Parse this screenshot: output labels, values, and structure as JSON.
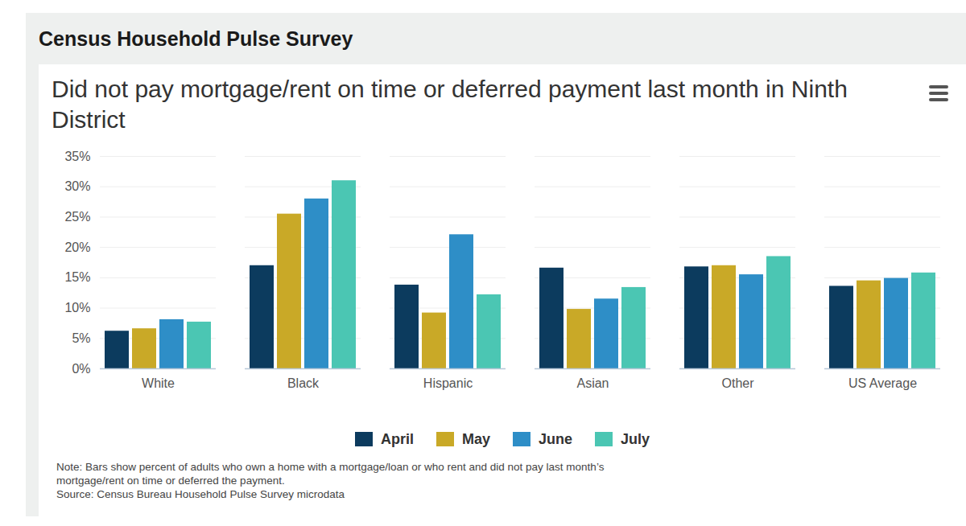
{
  "chart_data": {
    "type": "bar",
    "header": "Census Household Pulse Survey",
    "title": "Did not pay mortgage/rent on time or deferred payment last month in Ninth District",
    "annotations": [
      "Note: Bars show percent of adults who own a home with a mortgage/loan or who rent and did not pay last month’s mortgage/rent on time or deferred the payment.",
      "Source: Census Bureau Household Pulse Survey microdata"
    ],
    "categories": [
      "White",
      "Black",
      "Hispanic",
      "Asian",
      "Other",
      "US Average"
    ],
    "series": [
      {
        "name": "April",
        "color": "#0c3b5e",
        "values": [
          6.2,
          17.0,
          13.8,
          16.6,
          16.8,
          13.6
        ]
      },
      {
        "name": "May",
        "color": "#c9a927",
        "values": [
          6.6,
          25.5,
          9.2,
          9.8,
          17.0,
          14.5
        ]
      },
      {
        "name": "June",
        "color": "#2e8ec7",
        "values": [
          8.1,
          28.0,
          22.1,
          11.5,
          15.5,
          14.9
        ]
      },
      {
        "name": "July",
        "color": "#4bc6b3",
        "values": [
          7.7,
          31.0,
          12.2,
          13.4,
          18.5,
          15.8
        ]
      }
    ],
    "ylim": [
      0,
      35
    ],
    "yticks": [
      {
        "value": 0,
        "label": "0%"
      },
      {
        "value": 5,
        "label": "5%"
      },
      {
        "value": 10,
        "label": "10%"
      },
      {
        "value": 15,
        "label": "15%"
      },
      {
        "value": 20,
        "label": "20%"
      },
      {
        "value": 25,
        "label": "25%"
      },
      {
        "value": 30,
        "label": "30%"
      },
      {
        "value": 35,
        "label": "35%"
      }
    ],
    "grid": true,
    "legend": "bottom"
  }
}
